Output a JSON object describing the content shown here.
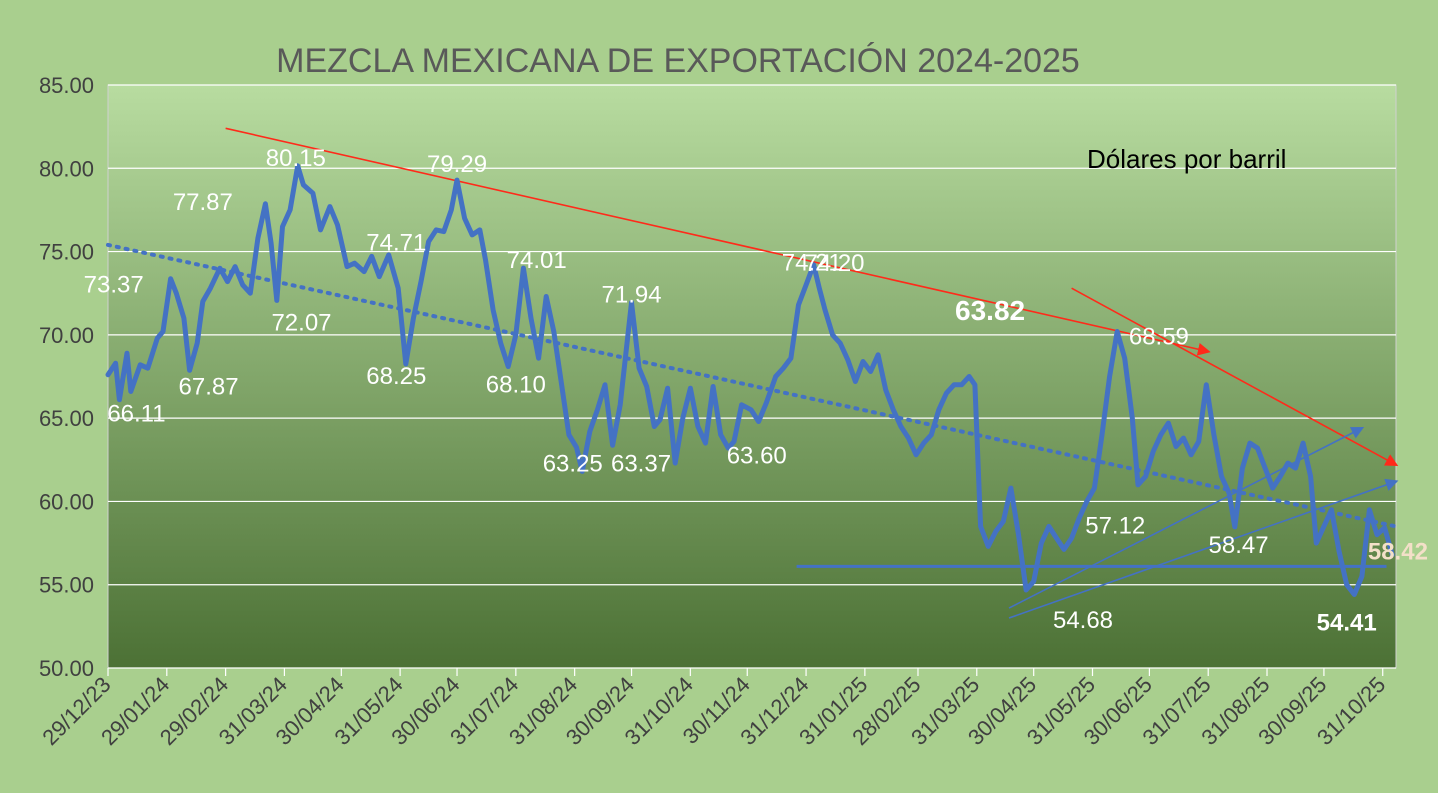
{
  "chart_data": {
    "type": "line",
    "title": "MEZCLA MEXICANA DE EXPORTACIÓN 2024-2025",
    "unit_label": "Dólares por barril",
    "ylim": [
      50,
      85
    ],
    "y_ticks": [
      "50.00",
      "55.00",
      "60.00",
      "65.00",
      "70.00",
      "75.00",
      "80.00",
      "85.00"
    ],
    "x_range": [
      "2023-12-29",
      "2025-11-07"
    ],
    "x_tick_labels": [
      "29/12/23",
      "29/01/24",
      "29/02/24",
      "31/03/24",
      "30/04/24",
      "31/05/24",
      "30/06/24",
      "31/07/24",
      "31/08/24",
      "30/09/24",
      "31/10/24",
      "30/11/24",
      "31/12/24",
      "31/01/25",
      "28/02/25",
      "31/03/25",
      "30/04/25",
      "31/05/25",
      "30/06/25",
      "31/07/25",
      "31/08/25",
      "30/09/25",
      "31/10/25"
    ],
    "x_tick_dates": [
      "2023-12-29",
      "2024-01-29",
      "2024-02-29",
      "2024-03-31",
      "2024-04-30",
      "2024-05-31",
      "2024-06-30",
      "2024-07-31",
      "2024-08-31",
      "2024-09-30",
      "2024-10-31",
      "2024-11-30",
      "2024-12-31",
      "2025-01-31",
      "2025-02-28",
      "2025-03-31",
      "2025-04-30",
      "2025-05-31",
      "2025-06-30",
      "2025-07-31",
      "2025-08-31",
      "2025-09-30",
      "2025-10-31"
    ],
    "grid": true,
    "series": [
      {
        "color": "#4472c4",
        "points": [
          [
            "2023-12-29",
            67.6
          ],
          [
            "2024-01-02",
            68.3
          ],
          [
            "2024-01-04",
            66.11
          ],
          [
            "2024-01-08",
            68.9
          ],
          [
            "2024-01-10",
            66.6
          ],
          [
            "2024-01-15",
            68.2
          ],
          [
            "2024-01-19",
            68.0
          ],
          [
            "2024-01-24",
            69.8
          ],
          [
            "2024-01-27",
            70.2
          ],
          [
            "2024-01-31",
            73.37
          ],
          [
            "2024-02-03",
            72.5
          ],
          [
            "2024-02-07",
            71.0
          ],
          [
            "2024-02-10",
            67.87
          ],
          [
            "2024-02-14",
            69.5
          ],
          [
            "2024-02-17",
            72.0
          ],
          [
            "2024-02-21",
            72.8
          ],
          [
            "2024-02-26",
            74.0
          ],
          [
            "2024-03-01",
            73.2
          ],
          [
            "2024-03-05",
            74.1
          ],
          [
            "2024-03-09",
            73.0
          ],
          [
            "2024-03-13",
            72.5
          ],
          [
            "2024-03-17",
            75.8
          ],
          [
            "2024-03-21",
            77.87
          ],
          [
            "2024-03-24",
            75.5
          ],
          [
            "2024-03-27",
            72.07
          ],
          [
            "2024-03-30",
            76.5
          ],
          [
            "2024-04-03",
            77.5
          ],
          [
            "2024-04-07",
            80.15
          ],
          [
            "2024-04-10",
            79.0
          ],
          [
            "2024-04-15",
            78.5
          ],
          [
            "2024-04-19",
            76.3
          ],
          [
            "2024-04-24",
            77.7
          ],
          [
            "2024-04-28",
            76.6
          ],
          [
            "2024-05-03",
            74.1
          ],
          [
            "2024-05-07",
            74.3
          ],
          [
            "2024-05-12",
            73.8
          ],
          [
            "2024-05-16",
            74.71
          ],
          [
            "2024-05-20",
            73.5
          ],
          [
            "2024-05-25",
            74.8
          ],
          [
            "2024-05-30",
            72.8
          ],
          [
            "2024-06-03",
            68.25
          ],
          [
            "2024-06-07",
            71.0
          ],
          [
            "2024-06-11",
            73.2
          ],
          [
            "2024-06-15",
            75.6
          ],
          [
            "2024-06-19",
            76.3
          ],
          [
            "2024-06-23",
            76.2
          ],
          [
            "2024-06-27",
            77.5
          ],
          [
            "2024-06-30",
            79.29
          ],
          [
            "2024-07-04",
            77.0
          ],
          [
            "2024-07-08",
            76.0
          ],
          [
            "2024-07-12",
            76.3
          ],
          [
            "2024-07-15",
            74.5
          ],
          [
            "2024-07-19",
            71.5
          ],
          [
            "2024-07-23",
            69.5
          ],
          [
            "2024-07-27",
            68.1
          ],
          [
            "2024-07-31",
            70.0
          ],
          [
            "2024-08-04",
            74.01
          ],
          [
            "2024-08-08",
            71.0
          ],
          [
            "2024-08-12",
            68.6
          ],
          [
            "2024-08-16",
            72.3
          ],
          [
            "2024-08-20",
            70.2
          ],
          [
            "2024-08-24",
            67.1
          ],
          [
            "2024-08-28",
            64.0
          ],
          [
            "2024-09-01",
            63.25
          ],
          [
            "2024-09-04",
            61.8
          ],
          [
            "2024-09-08",
            64.2
          ],
          [
            "2024-09-12",
            65.5
          ],
          [
            "2024-09-16",
            67.0
          ],
          [
            "2024-09-20",
            63.37
          ],
          [
            "2024-09-24",
            65.8
          ],
          [
            "2024-09-30",
            71.94
          ],
          [
            "2024-10-04",
            68.0
          ],
          [
            "2024-10-08",
            66.9
          ],
          [
            "2024-10-12",
            64.5
          ],
          [
            "2024-10-15",
            64.9
          ],
          [
            "2024-10-19",
            66.8
          ],
          [
            "2024-10-23",
            62.3
          ],
          [
            "2024-10-27",
            65.0
          ],
          [
            "2024-10-31",
            66.8
          ],
          [
            "2024-11-04",
            64.5
          ],
          [
            "2024-11-08",
            63.5
          ],
          [
            "2024-11-12",
            66.9
          ],
          [
            "2024-11-16",
            64.0
          ],
          [
            "2024-11-20",
            63.2
          ],
          [
            "2024-11-23",
            63.6
          ],
          [
            "2024-11-27",
            65.8
          ],
          [
            "2024-12-02",
            65.5
          ],
          [
            "2024-12-06",
            64.8
          ],
          [
            "2024-12-10",
            65.9
          ],
          [
            "2024-12-15",
            67.5
          ],
          [
            "2024-12-19",
            68.0
          ],
          [
            "2024-12-23",
            68.6
          ],
          [
            "2024-12-27",
            71.8
          ],
          [
            "2024-12-31",
            73.0
          ],
          [
            "2025-01-04",
            74.21
          ],
          [
            "2025-01-07",
            72.8
          ],
          [
            "2025-01-10",
            71.5
          ],
          [
            "2025-01-14",
            70.0
          ],
          [
            "2025-01-18",
            69.5
          ],
          [
            "2025-01-22",
            68.5
          ],
          [
            "2025-01-26",
            67.2
          ],
          [
            "2025-01-30",
            68.4
          ],
          [
            "2025-02-03",
            67.8
          ],
          [
            "2025-02-07",
            68.8
          ],
          [
            "2025-02-11",
            66.7
          ],
          [
            "2025-02-15",
            65.5
          ],
          [
            "2025-02-19",
            64.5
          ],
          [
            "2025-02-23",
            63.8
          ],
          [
            "2025-02-27",
            62.8
          ],
          [
            "2025-03-03",
            63.5
          ],
          [
            "2025-03-07",
            64.0
          ],
          [
            "2025-03-11",
            65.5
          ],
          [
            "2025-03-15",
            66.5
          ],
          [
            "2025-03-19",
            67.0
          ],
          [
            "2025-03-23",
            67.0
          ],
          [
            "2025-03-27",
            67.5
          ],
          [
            "2025-03-30",
            67.0
          ],
          [
            "2025-04-02",
            58.5
          ],
          [
            "2025-04-06",
            57.3
          ],
          [
            "2025-04-10",
            58.2
          ],
          [
            "2025-04-14",
            58.8
          ],
          [
            "2025-04-18",
            60.8
          ],
          [
            "2025-04-22",
            58.0
          ],
          [
            "2025-04-26",
            54.68
          ],
          [
            "2025-04-30",
            55.2
          ],
          [
            "2025-05-04",
            57.5
          ],
          [
            "2025-05-08",
            58.5
          ],
          [
            "2025-05-12",
            57.8
          ],
          [
            "2025-05-16",
            57.12
          ],
          [
            "2025-05-20",
            57.8
          ],
          [
            "2025-05-24",
            59.0
          ],
          [
            "2025-05-28",
            60.0
          ],
          [
            "2025-06-01",
            60.8
          ],
          [
            "2025-06-05",
            64.0
          ],
          [
            "2025-06-09",
            67.5
          ],
          [
            "2025-06-13",
            70.2
          ],
          [
            "2025-06-17",
            68.59
          ],
          [
            "2025-06-21",
            65.0
          ],
          [
            "2025-06-24",
            61.0
          ],
          [
            "2025-06-28",
            61.5
          ],
          [
            "2025-07-02",
            63.0
          ],
          [
            "2025-07-06",
            64.0
          ],
          [
            "2025-07-10",
            64.7
          ],
          [
            "2025-07-14",
            63.3
          ],
          [
            "2025-07-18",
            63.8
          ],
          [
            "2025-07-22",
            62.8
          ],
          [
            "2025-07-26",
            63.6
          ],
          [
            "2025-07-30",
            67.0
          ],
          [
            "2025-08-03",
            64.0
          ],
          [
            "2025-08-07",
            61.5
          ],
          [
            "2025-08-11",
            60.5
          ],
          [
            "2025-08-14",
            58.47
          ],
          [
            "2025-08-18",
            62.0
          ],
          [
            "2025-08-22",
            63.5
          ],
          [
            "2025-08-26",
            63.2
          ],
          [
            "2025-08-30",
            62.0
          ],
          [
            "2025-09-03",
            60.8
          ],
          [
            "2025-09-07",
            61.5
          ],
          [
            "2025-09-11",
            62.3
          ],
          [
            "2025-09-15",
            62.0
          ],
          [
            "2025-09-19",
            63.5
          ],
          [
            "2025-09-23",
            61.5
          ],
          [
            "2025-09-26",
            57.5
          ],
          [
            "2025-09-30",
            58.5
          ],
          [
            "2025-10-04",
            59.5
          ],
          [
            "2025-10-08",
            57.0
          ],
          [
            "2025-10-12",
            55.0
          ],
          [
            "2025-10-16",
            54.41
          ],
          [
            "2025-10-20",
            55.5
          ],
          [
            "2025-10-24",
            59.5
          ],
          [
            "2025-10-28",
            58.0
          ],
          [
            "2025-11-01",
            58.42
          ],
          [
            "2025-11-05",
            56.8
          ]
        ]
      }
    ],
    "data_labels": [
      {
        "text": "73.37",
        "date": "2024-01-01",
        "value": 73.37,
        "color": "#ffffff"
      },
      {
        "text": "66.11",
        "date": "2024-01-13",
        "value": 66.11,
        "color": "#ffffff"
      },
      {
        "text": "67.87",
        "date": "2024-02-20",
        "value": 67.87,
        "color": "#ffffff"
      },
      {
        "text": "77.87",
        "date": "2024-02-17",
        "value": 77.87,
        "color": "#ffffff"
      },
      {
        "text": "80.15",
        "date": "2024-04-06",
        "value": 80.15,
        "color": "#ffffff"
      },
      {
        "text": "72.07",
        "date": "2024-04-09",
        "value": 72.07,
        "color": "#ffffff"
      },
      {
        "text": "74.71",
        "date": "2024-05-29",
        "value": 74.71,
        "color": "#ffffff"
      },
      {
        "text": "68.25",
        "date": "2024-05-29",
        "value": 68.25,
        "color": "#ffffff"
      },
      {
        "text": "79.29",
        "date": "2024-06-30",
        "value": 79.29,
        "color": "#ffffff"
      },
      {
        "text": "68.10",
        "date": "2024-07-31",
        "value": 68.1,
        "color": "#ffffff"
      },
      {
        "text": "74.01",
        "date": "2024-08-11",
        "value": 74.01,
        "color": "#ffffff"
      },
      {
        "text": "71.94",
        "date": "2024-09-30",
        "value": 71.94,
        "color": "#ffffff"
      },
      {
        "text": "63.25",
        "date": "2024-08-30",
        "value": 63.25,
        "color": "#ffffff"
      },
      {
        "text": "63.37",
        "date": "2024-10-05",
        "value": 63.37,
        "color": "#ffffff"
      },
      {
        "text": "63.60",
        "date": "2024-12-05",
        "value": 63.6,
        "color": "#ffffff"
      },
      {
        "text": "74.21",
        "date": "2025-01-03",
        "value": 74.21,
        "color": "#ffffff"
      },
      {
        "text": "74.20",
        "date": "2025-01-15",
        "value": 74.2,
        "color": "#ffffff"
      },
      {
        "text": "68.59",
        "date": "2025-07-05",
        "value": 68.59,
        "color": "#ffffff"
      },
      {
        "text": "63.82",
        "date": "2025-04-07",
        "value": 63.82,
        "color": "#ffffff"
      },
      {
        "text": "57.12",
        "date": "2025-06-12",
        "value": 57.12,
        "color": "#ffffff"
      },
      {
        "text": "54.68",
        "date": "2025-05-26",
        "value": 54.68,
        "color": "#ffffff"
      },
      {
        "text": "58.47",
        "date": "2025-08-16",
        "value": 58.47,
        "color": "#ffffff"
      },
      {
        "text": "54.41",
        "date": "2025-10-12",
        "value": 54.41,
        "color": "#ffffff"
      },
      {
        "text": "58.42",
        "date": "2025-11-08",
        "value": 58.42,
        "color": "#f3e0c8"
      }
    ],
    "annotations": {
      "dotted_trend": {
        "color": "#4472c4",
        "from": [
          "2023-12-29",
          75.4
        ],
        "to": [
          "2025-11-07",
          58.5
        ]
      },
      "red_lines": [
        {
          "color": "#ff2a1a",
          "from": [
            "2024-02-29",
            82.4
          ],
          "to": [
            "2025-07-31",
            69.0
          ]
        },
        {
          "color": "#ff2a1a",
          "from": [
            "2025-05-20",
            72.8
          ],
          "to": [
            "2025-11-07",
            62.2
          ]
        }
      ],
      "blue_lines": [
        {
          "color": "#4472c4",
          "from": [
            "2025-04-17",
            53.6
          ],
          "to": [
            "2025-10-20",
            64.4
          ]
        },
        {
          "color": "#4472c4",
          "from": [
            "2025-04-17",
            53.0
          ],
          "to": [
            "2025-11-07",
            61.2
          ]
        }
      ],
      "support_line": {
        "color": "#4472c4",
        "from": [
          "2024-12-26",
          56.1
        ],
        "to": [
          "2025-11-02",
          56.1
        ]
      }
    },
    "background": {
      "outer": "#a9cf8e",
      "plot_top": "#b8dca0",
      "plot_bottom": "#4c7135"
    },
    "title_color": "#595959"
  }
}
